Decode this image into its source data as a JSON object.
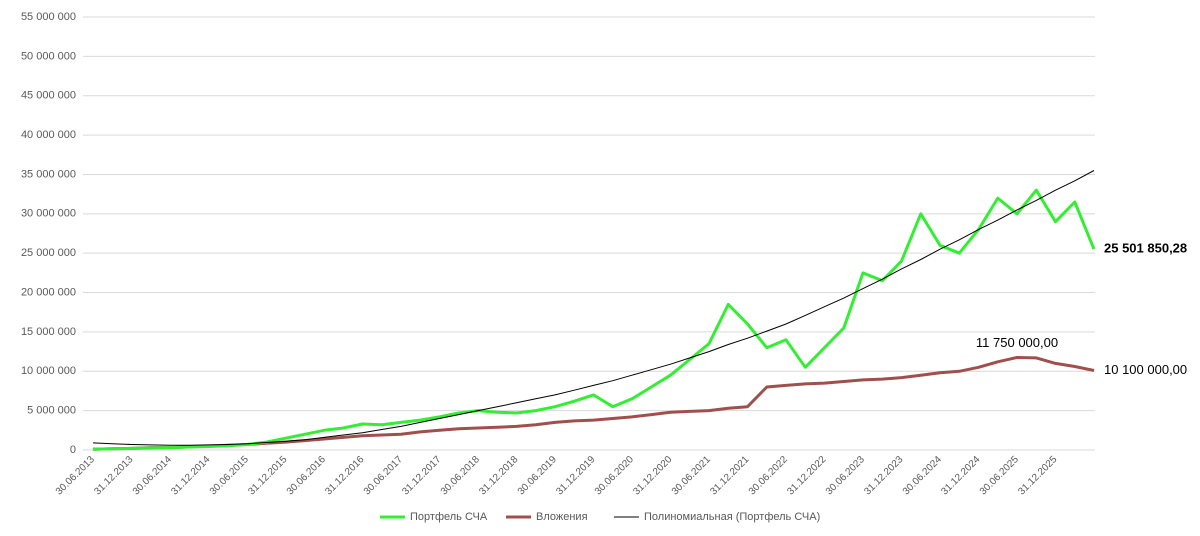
{
  "chart_data": {
    "type": "line",
    "categories": [
      "30.06.2013",
      null,
      "31.12.2013",
      null,
      "30.06.2014",
      null,
      "31.12.2014",
      null,
      "30.06.2015",
      null,
      "31.12.2015",
      null,
      "30.06.2016",
      null,
      "31.12.2016",
      null,
      "30.06.2017",
      null,
      "31.12.2017",
      null,
      "30.06.2018",
      null,
      "31.12.2018",
      null,
      "30.06.2019",
      null,
      "31.12.2019",
      null,
      "30.06.2020",
      null,
      "31.12.2020",
      null,
      "30.06.2021",
      null,
      "31.12.2021",
      null,
      "30.06.2022",
      null,
      "31.12.2022",
      null,
      "30.06.2023",
      null,
      "31.12.2023",
      null,
      "30.06.2024",
      null,
      "31.12.2024",
      null,
      "30.06.2025",
      null,
      "31.12.2025",
      null,
      null
    ],
    "series": [
      {
        "name": "Портфель СЧА",
        "color": "#33ee33",
        "values": [
          100000,
          150000,
          200000,
          250000,
          300000,
          380000,
          450000,
          550000,
          700000,
          1000000,
          1500000,
          2000000,
          2500000,
          2800000,
          3300000,
          3200000,
          3500000,
          3800000,
          4200000,
          4700000,
          5000000,
          4800000,
          4700000,
          5000000,
          5500000,
          6200000,
          7000000,
          5500000,
          6500000,
          8000000,
          9500000,
          11500000,
          13500000,
          18500000,
          16000000,
          13000000,
          14000000,
          10500000,
          13000000,
          15500000,
          22500000,
          21500000,
          24000000,
          30000000,
          26000000,
          25000000,
          28000000,
          32000000,
          30000000,
          33000000,
          29000000,
          31500000,
          25501850.28
        ],
        "value_labels": [
          null,
          null,
          null,
          null,
          null,
          null,
          null,
          null,
          null,
          null,
          null,
          null,
          null,
          null,
          null,
          null,
          null,
          null,
          null,
          null,
          null,
          null,
          null,
          null,
          null,
          null,
          null,
          null,
          null,
          null,
          null,
          null,
          null,
          null,
          null,
          null,
          null,
          null,
          null,
          null,
          null,
          null,
          null,
          null,
          null,
          null,
          null,
          null,
          null,
          null,
          null,
          null,
          "25 501 850,28"
        ]
      },
      {
        "name": "Вложения",
        "color": "#a0504c",
        "values": [
          100000,
          150000,
          200000,
          300000,
          300000,
          400000,
          500000,
          600000,
          700000,
          850000,
          1000000,
          1200000,
          1400000,
          1600000,
          1800000,
          1900000,
          2000000,
          2300000,
          2500000,
          2700000,
          2800000,
          2900000,
          3000000,
          3200000,
          3500000,
          3700000,
          3800000,
          4000000,
          4200000,
          4500000,
          4800000,
          4900000,
          5000000,
          5300000,
          5500000,
          8000000,
          8200000,
          8400000,
          8500000,
          8700000,
          8900000,
          9000000,
          9200000,
          9500000,
          9800000,
          10000000,
          10500000,
          11200000,
          11750000,
          11700000,
          11000000,
          10600000,
          10100000
        ],
        "value_labels": [
          null,
          null,
          null,
          null,
          null,
          null,
          null,
          null,
          null,
          null,
          null,
          null,
          null,
          null,
          null,
          null,
          null,
          null,
          null,
          null,
          null,
          null,
          null,
          null,
          null,
          null,
          null,
          null,
          null,
          null,
          null,
          null,
          null,
          null,
          null,
          null,
          null,
          null,
          null,
          null,
          null,
          null,
          null,
          null,
          null,
          null,
          null,
          null,
          "11 750 000,00",
          null,
          null,
          null,
          "10 100 000,00"
        ]
      },
      {
        "name": "Полиномиальная (Портфель СЧА)",
        "color": "#000000",
        "values": [
          900000,
          800000,
          700000,
          650000,
          600000,
          600000,
          650000,
          700000,
          800000,
          950000,
          1100000,
          1300000,
          1600000,
          1900000,
          2200000,
          2600000,
          3000000,
          3500000,
          4000000,
          4500000,
          5000000,
          5500000,
          6000000,
          6500000,
          7000000,
          7600000,
          8200000,
          8800000,
          9500000,
          10200000,
          10900000,
          11700000,
          12500000,
          13400000,
          14200000,
          15100000,
          16000000,
          17100000,
          18200000,
          19300000,
          20500000,
          21700000,
          23000000,
          24200000,
          25500000,
          26700000,
          28000000,
          29200000,
          30500000,
          31700000,
          33000000,
          34200000,
          35500000
        ]
      }
    ],
    "ylim": [
      0,
      55000000
    ],
    "yticks": [
      0,
      {
        "value": 5000000,
        "label": "5 000 000"
      },
      {
        "value": 10000000,
        "label": "10 000 000"
      },
      {
        "value": 15000000,
        "label": "15 000 000"
      },
      {
        "value": 20000000,
        "label": "20 000 000"
      },
      {
        "value": 25000000,
        "label": "25 000 000"
      },
      {
        "value": 30000000,
        "label": "30 000 000"
      },
      {
        "value": 35000000,
        "label": "35 000 000"
      },
      {
        "value": 40000000,
        "label": "40 000 000"
      },
      {
        "value": 45000000,
        "label": "45 000 000"
      },
      {
        "value": 50000000,
        "label": "50 000 000"
      },
      {
        "value": 55000000,
        "label": "55 000 000"
      }
    ],
    "grid": true
  }
}
